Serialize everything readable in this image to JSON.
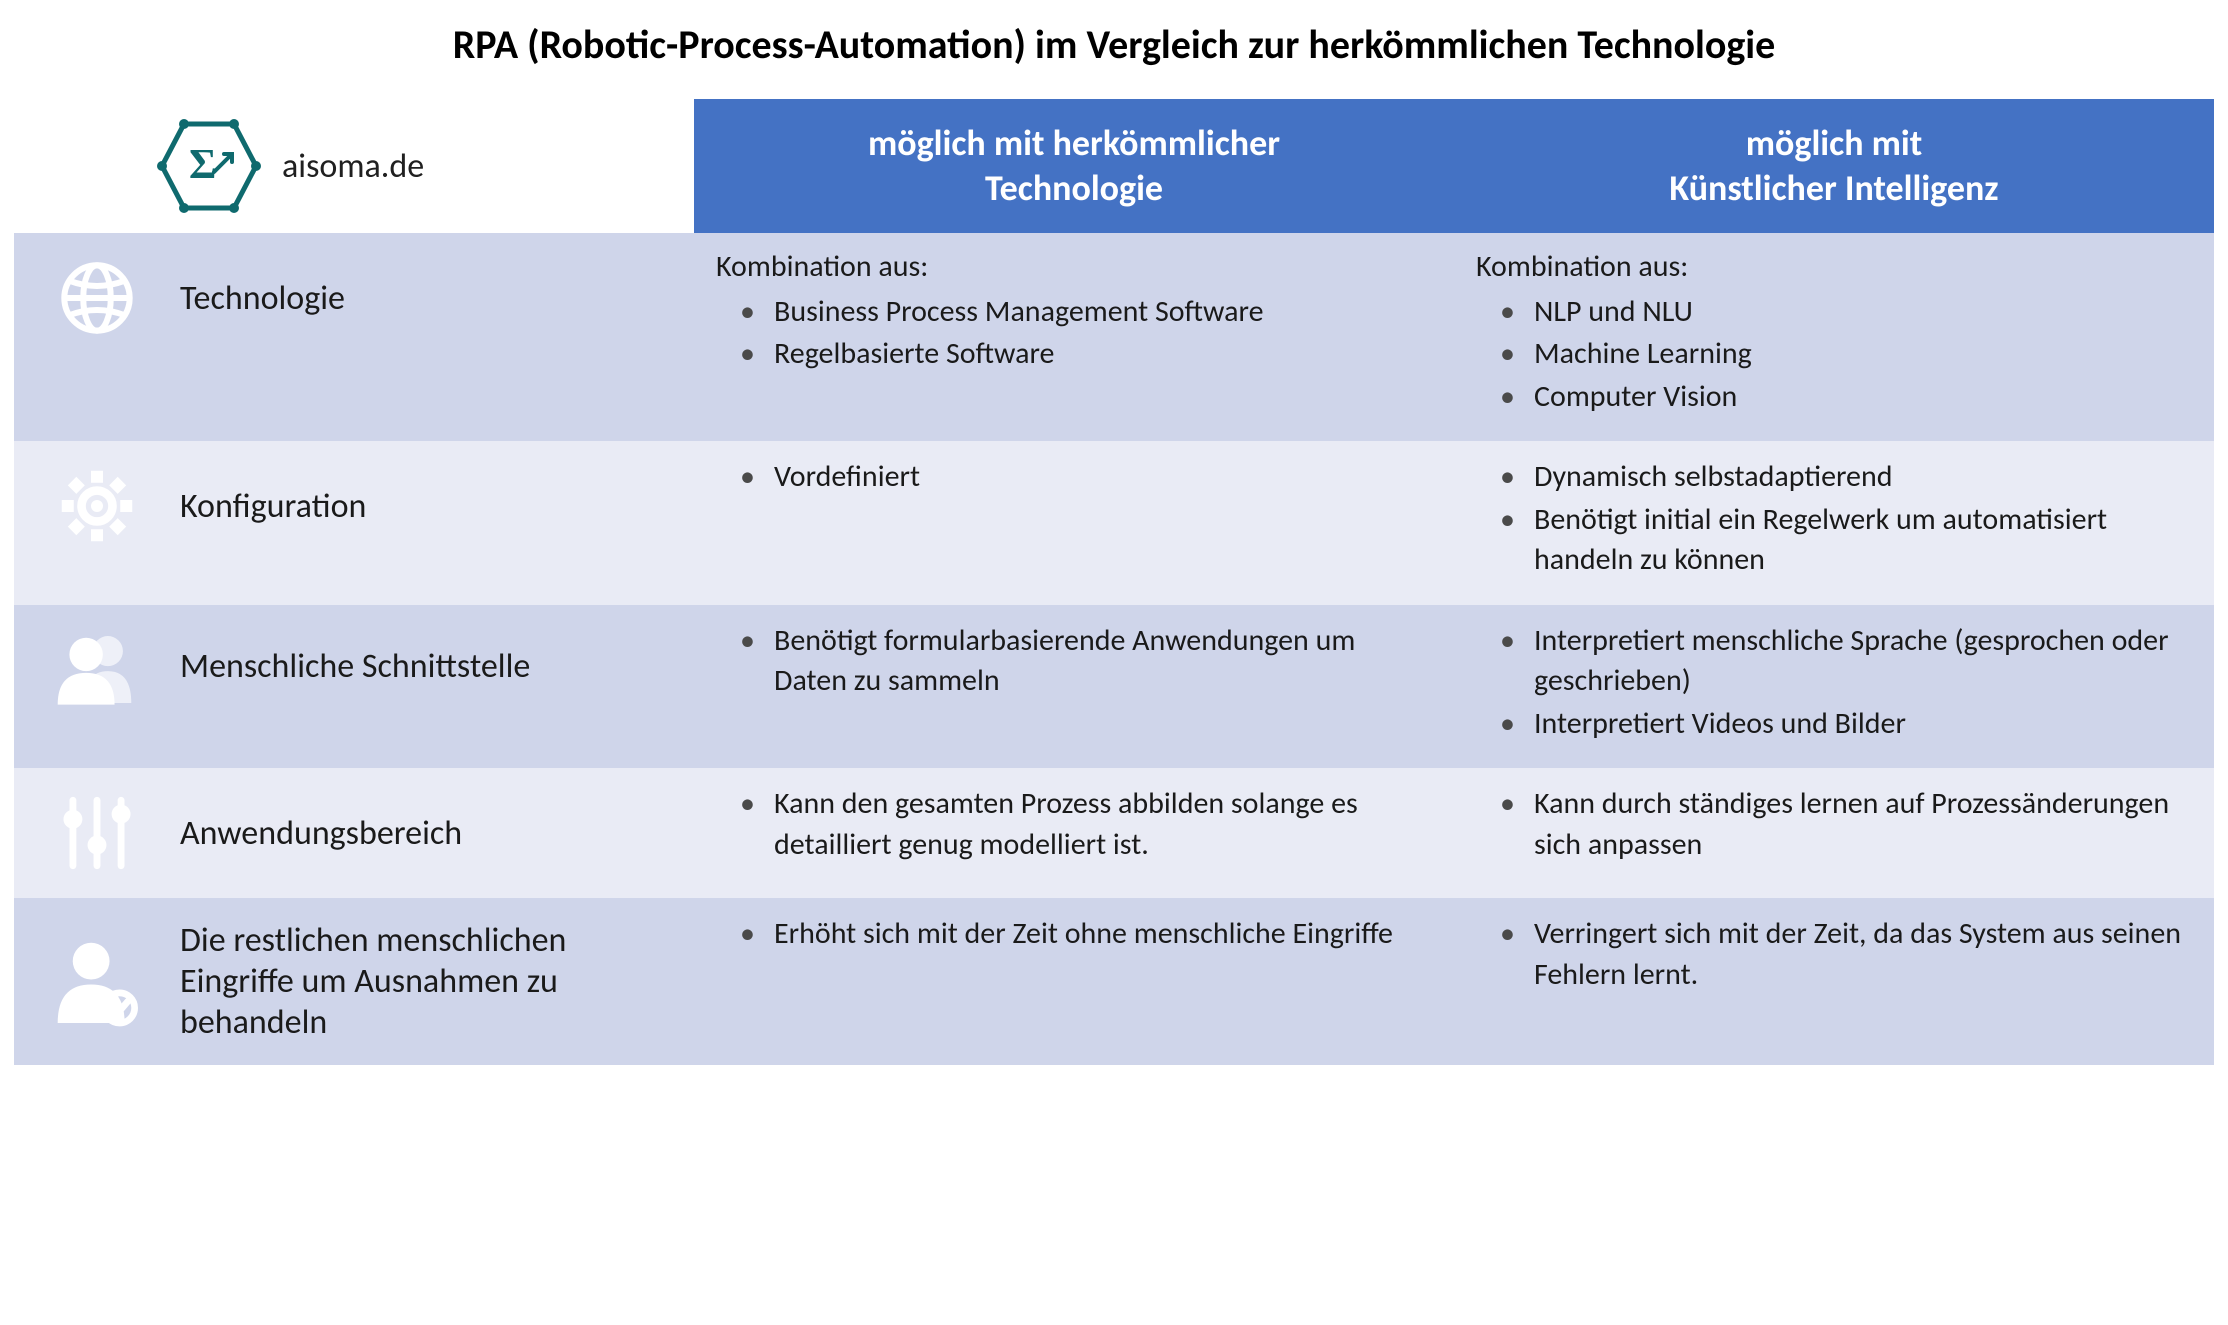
{
  "title": "RPA (Robotic-Process-Automation) im Vergleich zur herkömmlichen Technologie",
  "brand": {
    "text": "aisoma.de",
    "logo_color": "#0f6a6e"
  },
  "colors": {
    "header_bg": "#4472c4",
    "header_text": "#ffffff",
    "row_odd_bg": "#cfd5ea",
    "row_even_bg": "#e9ebf5",
    "icon_color": "#ffffff",
    "text_color": "#1a1a1a"
  },
  "columns": {
    "col1_line1": "möglich mit herkömmlicher",
    "col1_line2": "Technologie",
    "col2_line1": "möglich mit",
    "col2_line2": "Künstlicher Intelligenz"
  },
  "rows": [
    {
      "icon": "globe",
      "label": "Technologie",
      "col1_intro": "Kombination aus:",
      "col1_items": [
        "Business Process Management Software",
        "Regelbasierte Software"
      ],
      "col2_intro": "Kombination aus:",
      "col2_items": [
        "NLP und NLU",
        "Machine Learning",
        "Computer Vision"
      ]
    },
    {
      "icon": "gear",
      "label": "Konfiguration",
      "col1_intro": "",
      "col1_items": [
        "Vordefiniert"
      ],
      "col2_intro": "",
      "col2_items": [
        "Dynamisch selbstadaptierend",
        "Benötigt initial ein Regelwerk um automatisiert handeln zu können"
      ]
    },
    {
      "icon": "people",
      "label": "Menschliche Schnittstelle",
      "col1_intro": "",
      "col1_items": [
        "Benötigt formularbasierende Anwendungen um Daten zu sammeln"
      ],
      "col2_intro": "",
      "col2_items": [
        "Interpretiert menschliche Sprache (gesprochen oder geschrieben)",
        "Interpretiert Videos und Bilder"
      ]
    },
    {
      "icon": "sliders",
      "label": "Anwendungsbereich",
      "col1_intro": "",
      "col1_items": [
        "Kann den gesamten Prozess abbilden solange es detailliert genug modelliert ist."
      ],
      "col2_intro": "",
      "col2_items": [
        "Kann durch ständiges lernen auf Prozessänderungen sich anpassen"
      ]
    },
    {
      "icon": "user-check",
      "label": "Die restlichen menschlichen Eingriffe um Ausnahmen zu behandeln",
      "col1_intro": "",
      "col1_items": [
        "Erhöht sich mit der Zeit ohne menschliche Eingriffe"
      ],
      "col2_intro": "",
      "col2_items": [
        "Verringert sich mit der Zeit, da das System aus seinen Fehlern lernt."
      ]
    }
  ]
}
